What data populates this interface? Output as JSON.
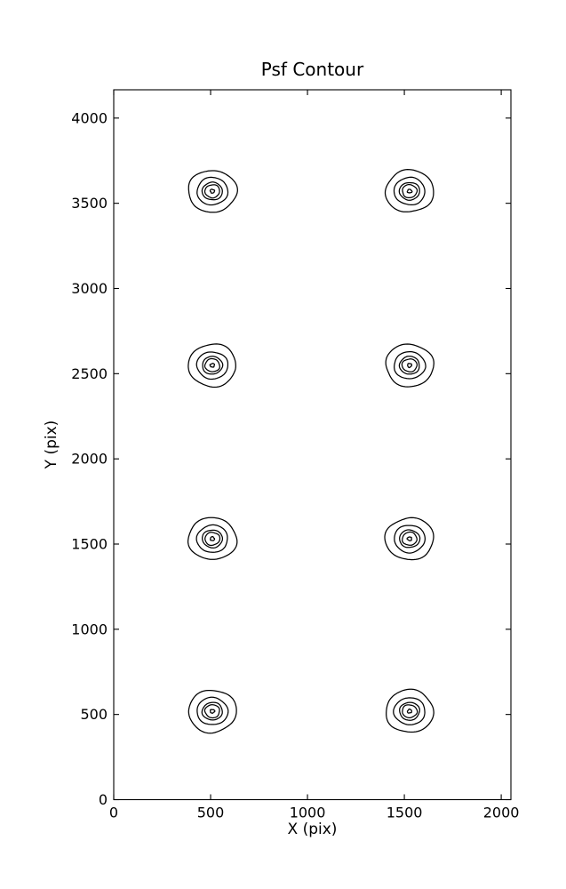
{
  "page": {
    "background": "#ffffff"
  },
  "chart_data": {
    "type": "contour",
    "title": "Psf Contour",
    "xlabel": "X (pix)",
    "ylabel": "Y (pix)",
    "xlim": [
      0,
      2050
    ],
    "ylim": [
      0,
      4166
    ],
    "xticks": [
      0,
      500,
      1000,
      1500,
      2000
    ],
    "yticks": [
      0,
      500,
      1000,
      1500,
      2000,
      2500,
      3000,
      3500,
      4000
    ],
    "grid": false,
    "legend": "none",
    "tick_direction": "in",
    "line_color": "#000000",
    "background": "#ffffff",
    "psf_centers": [
      {
        "x": 509,
        "y": 3571
      },
      {
        "x": 1527,
        "y": 3571
      },
      {
        "x": 509,
        "y": 2549
      },
      {
        "x": 1527,
        "y": 2549
      },
      {
        "x": 509,
        "y": 1531
      },
      {
        "x": 1527,
        "y": 1531
      },
      {
        "x": 509,
        "y": 519
      },
      {
        "x": 1527,
        "y": 519
      }
    ],
    "contour_level_radii": [
      124,
      80,
      52,
      38,
      11
    ]
  }
}
